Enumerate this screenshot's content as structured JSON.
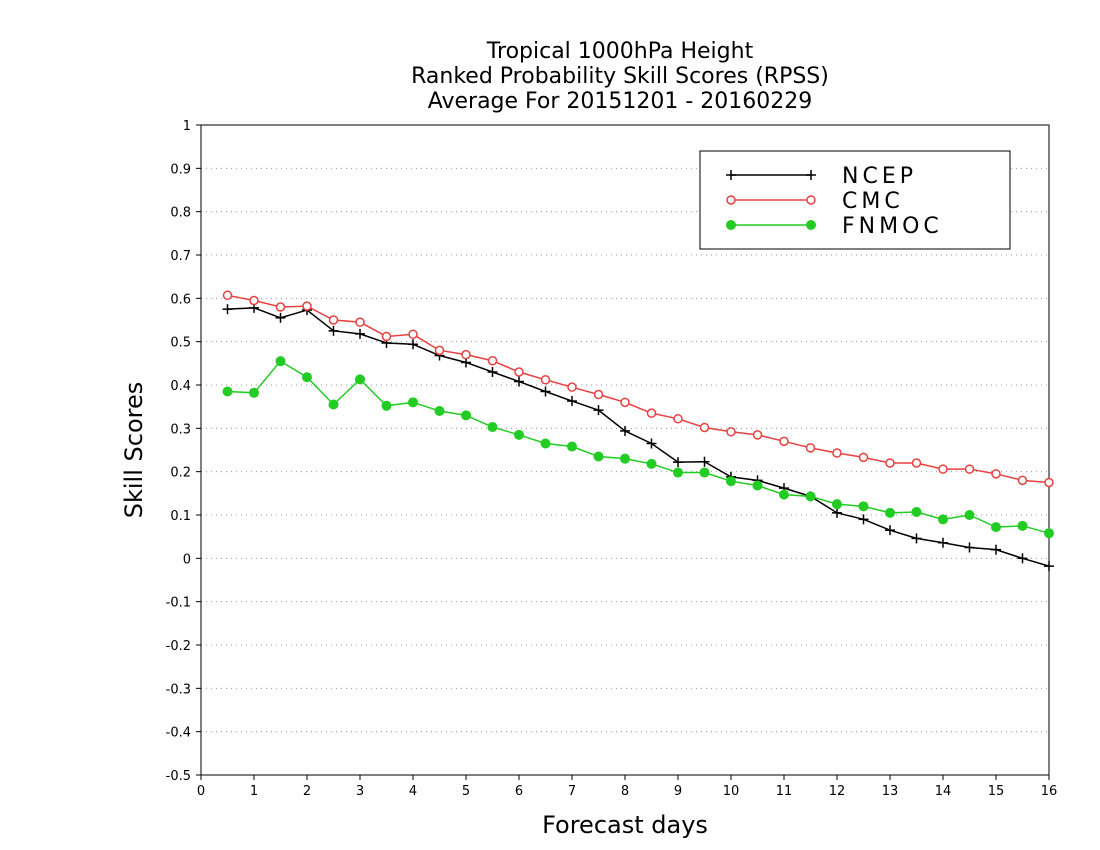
{
  "chart_data": {
    "type": "line",
    "title": [
      "Tropical 1000hPa Height",
      "Ranked Probability Skill Scores (RPSS)",
      "Average For 20151201 - 20160229"
    ],
    "xlabel": "Forecast days",
    "ylabel": "Skill Scores",
    "xlim": [
      0,
      16
    ],
    "ylim": [
      -0.5,
      1
    ],
    "x_ticks": [
      "0",
      "1",
      "2",
      "3",
      "4",
      "5",
      "6",
      "7",
      "8",
      "9",
      "10",
      "11",
      "12",
      "13",
      "14",
      "15",
      "16"
    ],
    "y_ticks": [
      "1",
      "0.9",
      "0.8",
      "0.7",
      "0.6",
      "0.5",
      "0.4",
      "0.3",
      "0.2",
      "0.1",
      "0",
      "-0.1",
      "-0.2",
      "-0.3",
      "-0.4",
      "-0.5"
    ],
    "grid": "horizontal-dotted",
    "legend_position": "top-right",
    "x": [
      0.5,
      1.0,
      1.5,
      2.0,
      2.5,
      3.0,
      3.5,
      4.0,
      4.5,
      5.0,
      5.5,
      6.0,
      6.5,
      7.0,
      7.5,
      8.0,
      8.5,
      9.0,
      9.5,
      10.0,
      10.5,
      11.0,
      11.5,
      12.0,
      12.5,
      13.0,
      13.5,
      14.0,
      14.5,
      15.0,
      15.5,
      16.0
    ],
    "series": [
      {
        "name": "NCEP",
        "color": "#000000",
        "marker": "plus",
        "values": [
          0.575,
          0.578,
          0.555,
          0.573,
          0.525,
          0.518,
          0.497,
          0.494,
          0.468,
          0.452,
          0.43,
          0.408,
          0.385,
          0.363,
          0.342,
          0.294,
          0.265,
          0.222,
          0.223,
          0.188,
          0.18,
          0.162,
          0.143,
          0.105,
          0.09,
          0.065,
          0.046,
          0.036,
          0.025,
          0.02,
          0.0,
          -0.018
        ]
      },
      {
        "name": "CMC",
        "color": "#e84040",
        "marker": "open-circle",
        "values": [
          0.607,
          0.595,
          0.58,
          0.582,
          0.55,
          0.545,
          0.512,
          0.517,
          0.48,
          0.47,
          0.456,
          0.43,
          0.412,
          0.395,
          0.378,
          0.36,
          0.335,
          0.322,
          0.302,
          0.292,
          0.285,
          0.27,
          0.255,
          0.243,
          0.233,
          0.22,
          0.22,
          0.206,
          0.206,
          0.195,
          0.18,
          0.175
        ]
      },
      {
        "name": "FNMOC",
        "color": "#22cc22",
        "marker": "filled-circle",
        "values": [
          0.385,
          0.382,
          0.455,
          0.418,
          0.355,
          0.413,
          0.352,
          0.36,
          0.34,
          0.33,
          0.303,
          0.285,
          0.265,
          0.258,
          0.235,
          0.23,
          0.218,
          0.198,
          0.198,
          0.178,
          0.168,
          0.147,
          0.143,
          0.125,
          0.12,
          0.105,
          0.107,
          0.09,
          0.1,
          0.072,
          0.075,
          0.058
        ]
      }
    ]
  }
}
